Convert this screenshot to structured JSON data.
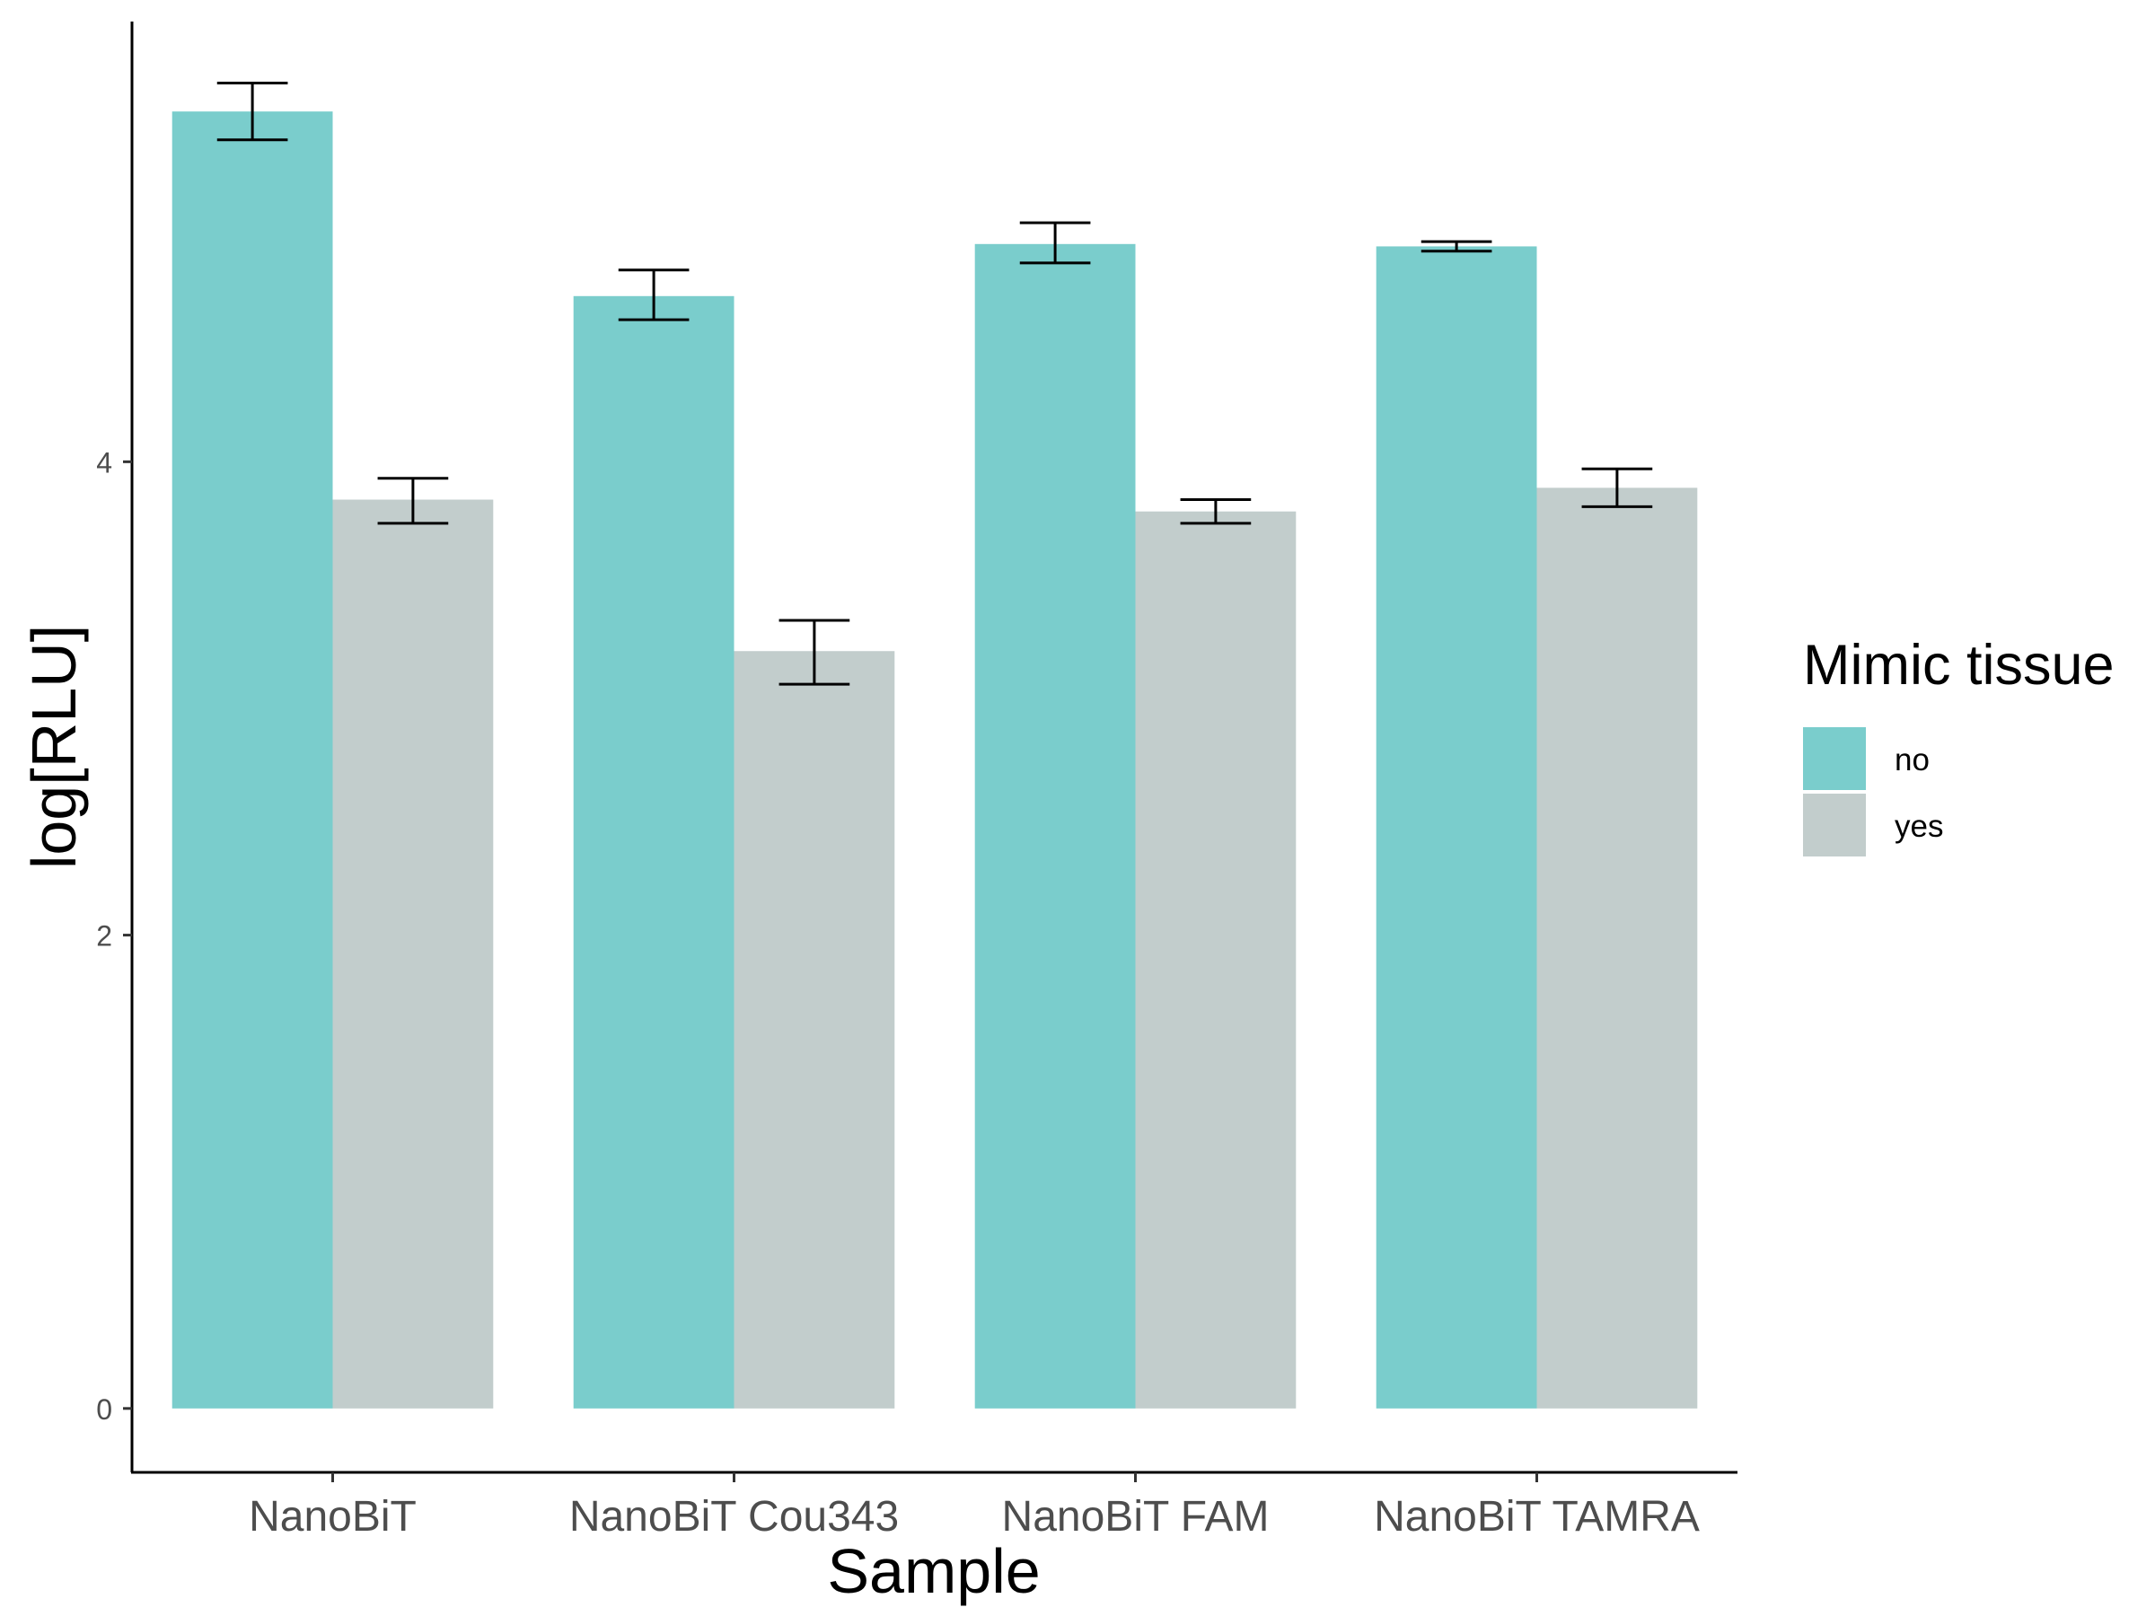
{
  "chart_data": {
    "type": "bar",
    "categories": [
      "NanoBiT",
      "NanoBiT Cou343",
      "NanoBiT FAM",
      "NanoBiT TAMRA"
    ],
    "series": [
      {
        "name": "no",
        "color": "#7acdcc",
        "values": [
          5.48,
          4.7,
          4.92,
          4.91
        ],
        "error_low": [
          5.36,
          4.6,
          4.84,
          4.89
        ],
        "error_high": [
          5.6,
          4.81,
          5.01,
          4.93
        ]
      },
      {
        "name": "yes",
        "color": "#c2cdcc",
        "values": [
          3.84,
          3.2,
          3.79,
          3.89
        ],
        "error_low": [
          3.74,
          3.06,
          3.74,
          3.81
        ],
        "error_high": [
          3.93,
          3.33,
          3.84,
          3.97
        ]
      }
    ],
    "xlabel": "Sample",
    "ylabel": "log[RLU]",
    "yticks": [
      "0",
      "2",
      "4"
    ],
    "ylim": [
      -0.27,
      5.86
    ],
    "legend": {
      "title": "Mimic tissue",
      "position": "right"
    },
    "grid": false
  }
}
